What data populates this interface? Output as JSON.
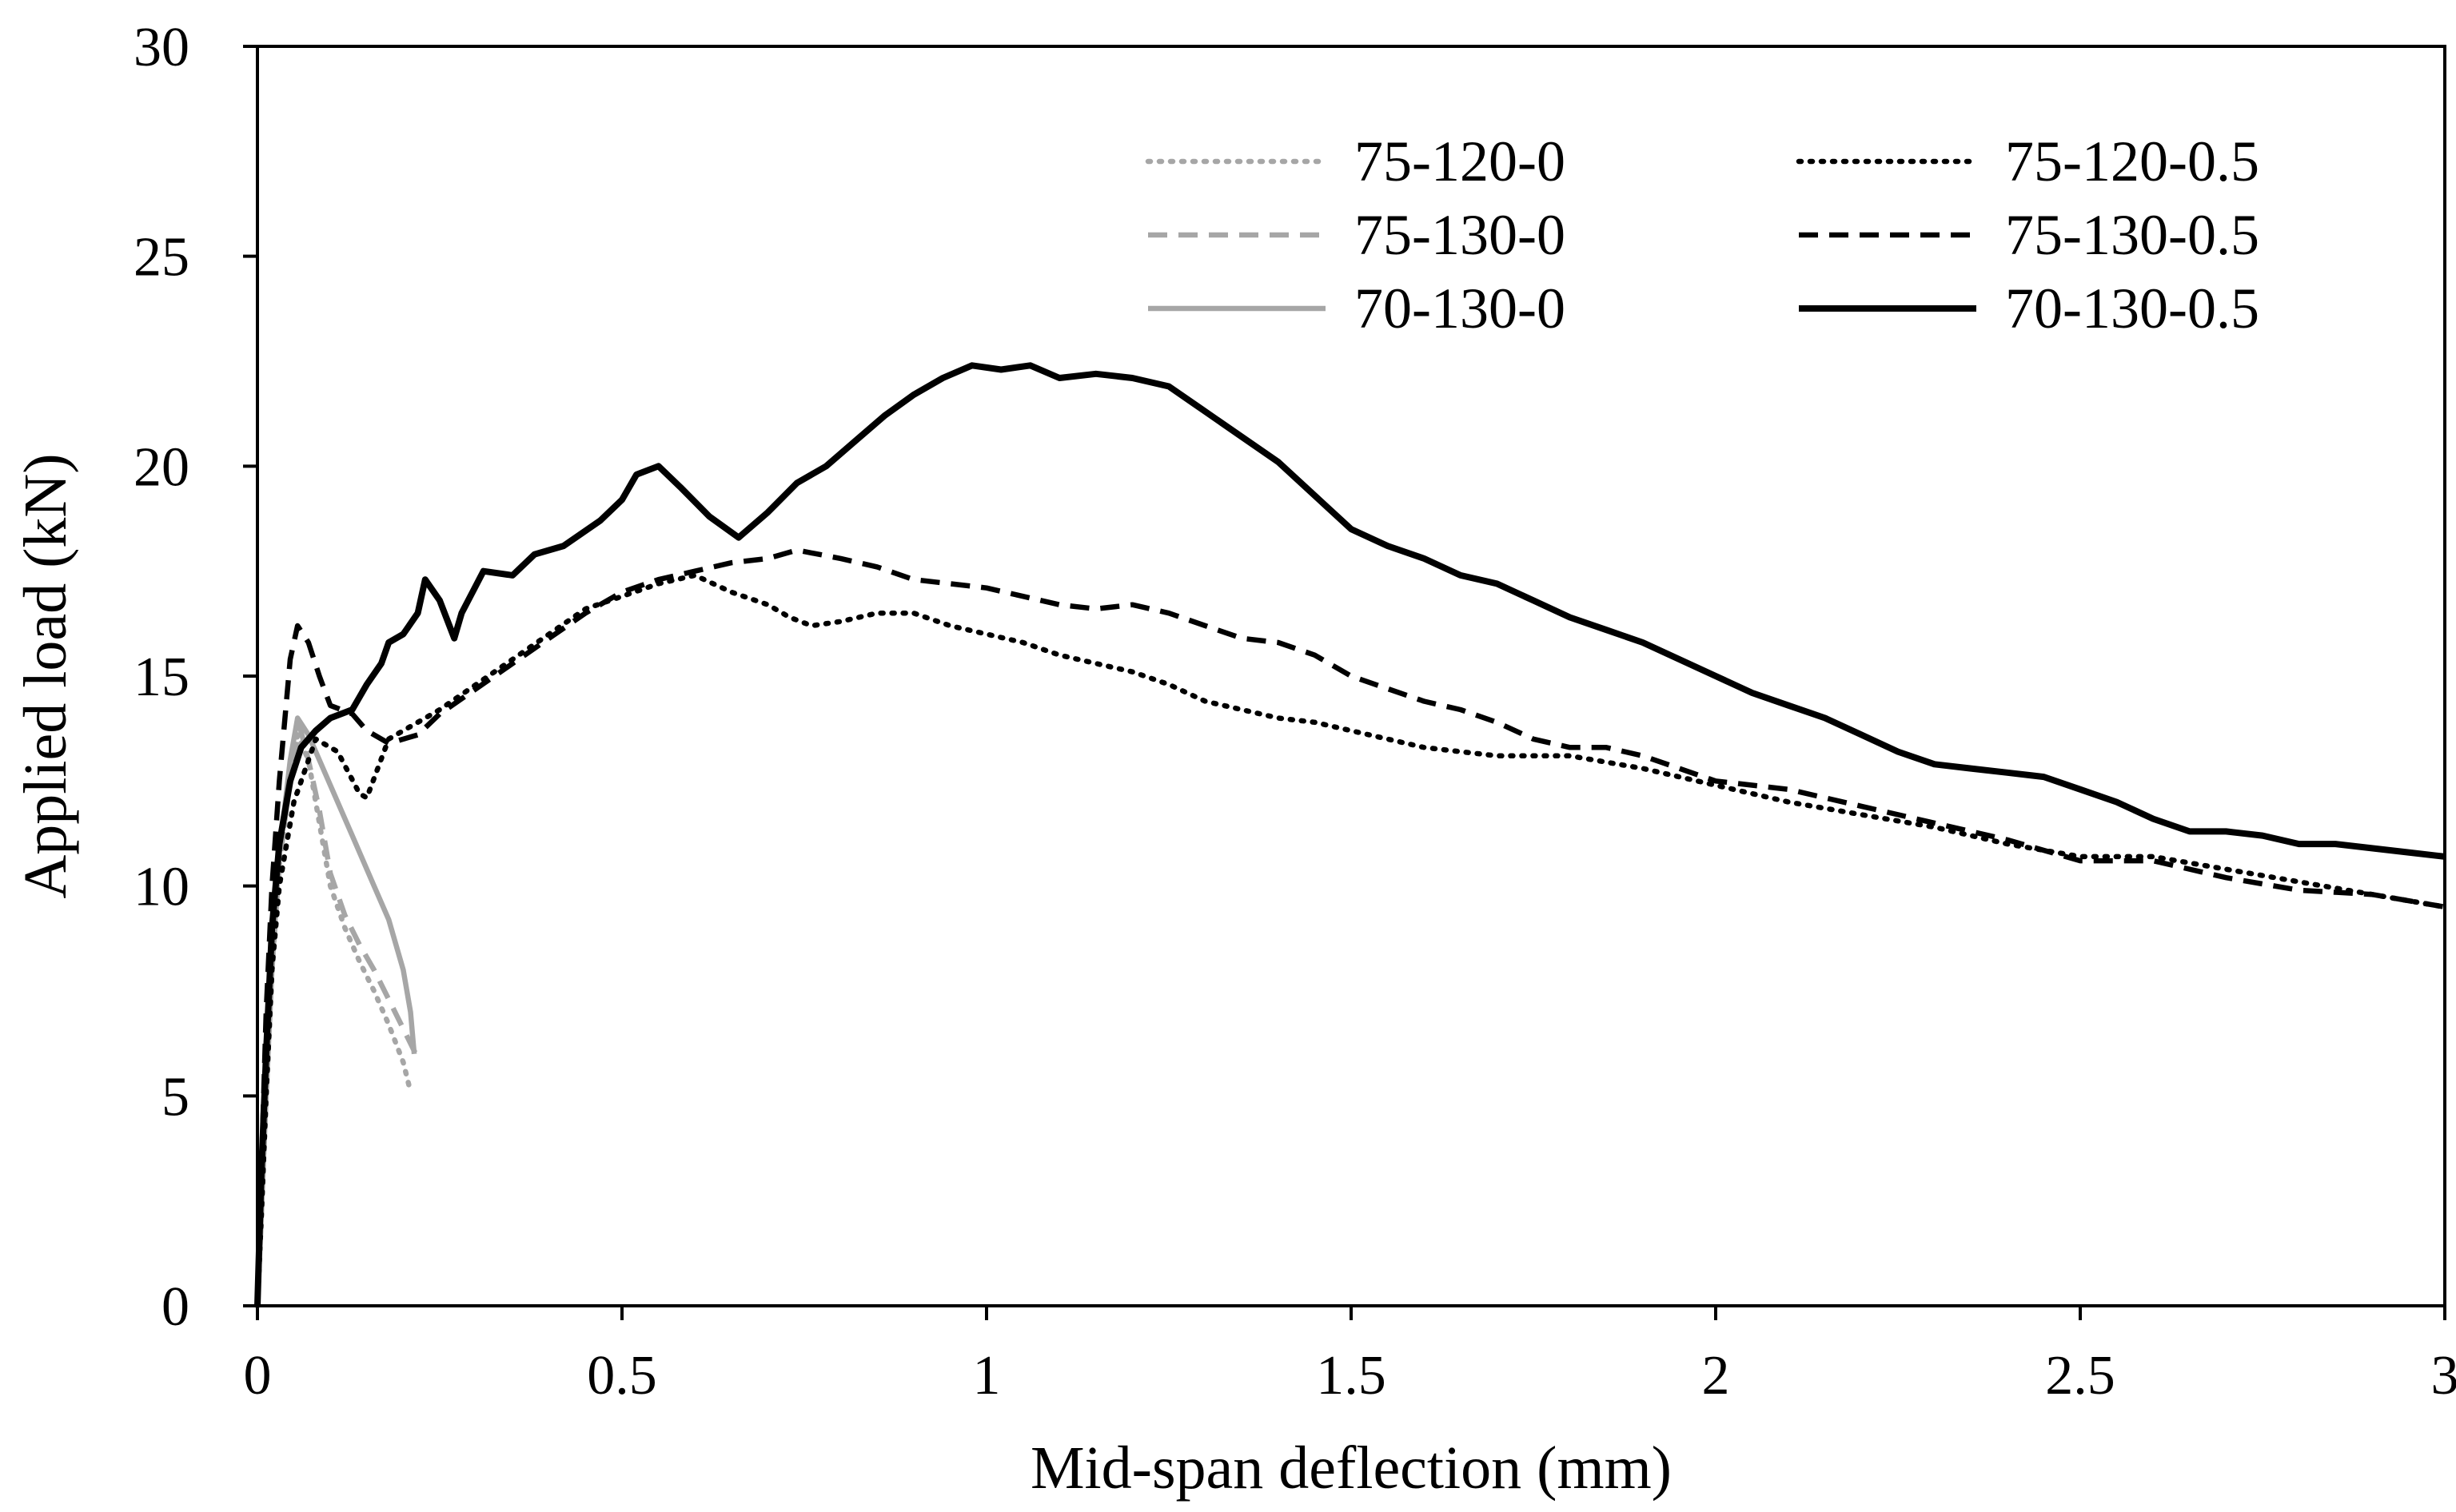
{
  "chart_data": {
    "type": "line",
    "title": "",
    "xlabel": "Mid-span deflection (mm)",
    "ylabel": "Applied load (kN)",
    "xlim": [
      0,
      3
    ],
    "ylim": [
      0,
      30
    ],
    "xticks": [
      0,
      0.5,
      1,
      1.5,
      2,
      2.5,
      3
    ],
    "yticks": [
      0,
      5,
      10,
      15,
      20,
      25,
      30
    ],
    "xtick_labels": [
      "0",
      "0.5",
      "1",
      "1.5",
      "2",
      "2.5",
      "3"
    ],
    "ytick_labels": [
      "0",
      "5",
      "10",
      "15",
      "20",
      "25",
      "30"
    ],
    "grid": false,
    "legend_position": "top-right",
    "series": [
      {
        "name": "75-120-0",
        "color": "#a6a6a6",
        "dash": "dotted",
        "weight": "normal",
        "points": [
          [
            0,
            0
          ],
          [
            0.005,
            2
          ],
          [
            0.012,
            5
          ],
          [
            0.02,
            8
          ],
          [
            0.03,
            10.5
          ],
          [
            0.045,
            12.5
          ],
          [
            0.055,
            13.6
          ],
          [
            0.07,
            13
          ],
          [
            0.085,
            11.5
          ],
          [
            0.1,
            10
          ],
          [
            0.12,
            9
          ],
          [
            0.14,
            8.2
          ],
          [
            0.16,
            7.5
          ],
          [
            0.18,
            6.7
          ],
          [
            0.2,
            5.8
          ],
          [
            0.21,
            5.1
          ]
        ]
      },
      {
        "name": "75-130-0",
        "color": "#a6a6a6",
        "dash": "dashed",
        "weight": "normal",
        "points": [
          [
            0,
            0
          ],
          [
            0.005,
            2
          ],
          [
            0.012,
            5
          ],
          [
            0.02,
            8
          ],
          [
            0.03,
            10.5
          ],
          [
            0.045,
            12.6
          ],
          [
            0.058,
            13.8
          ],
          [
            0.07,
            13
          ],
          [
            0.085,
            11.8
          ],
          [
            0.1,
            10.3
          ],
          [
            0.12,
            9.3
          ],
          [
            0.14,
            8.6
          ],
          [
            0.16,
            8
          ],
          [
            0.18,
            7.3
          ],
          [
            0.2,
            6.6
          ],
          [
            0.22,
            5.9
          ]
        ]
      },
      {
        "name": "70-130-0",
        "color": "#a6a6a6",
        "dash": "solid",
        "weight": "normal",
        "points": [
          [
            0,
            0
          ],
          [
            0.005,
            2
          ],
          [
            0.012,
            5
          ],
          [
            0.02,
            8
          ],
          [
            0.03,
            10.8
          ],
          [
            0.045,
            13
          ],
          [
            0.055,
            14
          ],
          [
            0.07,
            13.6
          ],
          [
            0.1,
            12.4
          ],
          [
            0.13,
            11.2
          ],
          [
            0.16,
            10
          ],
          [
            0.18,
            9.2
          ],
          [
            0.2,
            8
          ],
          [
            0.21,
            7
          ],
          [
            0.215,
            6
          ]
        ]
      },
      {
        "name": "75-120-0.5",
        "color": "#000000",
        "dash": "dotted",
        "weight": "normal",
        "points": [
          [
            0,
            0
          ],
          [
            0.005,
            2
          ],
          [
            0.012,
            5
          ],
          [
            0.02,
            8
          ],
          [
            0.03,
            10
          ],
          [
            0.05,
            12
          ],
          [
            0.08,
            13.5
          ],
          [
            0.11,
            13.2
          ],
          [
            0.14,
            12.2
          ],
          [
            0.15,
            12.1
          ],
          [
            0.18,
            13.5
          ],
          [
            0.25,
            14.2
          ],
          [
            0.3,
            14.8
          ],
          [
            0.35,
            15.4
          ],
          [
            0.4,
            16
          ],
          [
            0.45,
            16.6
          ],
          [
            0.5,
            16.9
          ],
          [
            0.55,
            17.2
          ],
          [
            0.6,
            17.4
          ],
          [
            0.65,
            17
          ],
          [
            0.7,
            16.7
          ],
          [
            0.73,
            16.4
          ],
          [
            0.76,
            16.2
          ],
          [
            0.8,
            16.3
          ],
          [
            0.85,
            16.5
          ],
          [
            0.9,
            16.5
          ],
          [
            0.95,
            16.2
          ],
          [
            1,
            16
          ],
          [
            1.05,
            15.8
          ],
          [
            1.1,
            15.5
          ],
          [
            1.15,
            15.3
          ],
          [
            1.2,
            15.1
          ],
          [
            1.25,
            14.8
          ],
          [
            1.3,
            14.4
          ],
          [
            1.35,
            14.2
          ],
          [
            1.4,
            14
          ],
          [
            1.45,
            13.9
          ],
          [
            1.5,
            13.7
          ],
          [
            1.55,
            13.5
          ],
          [
            1.6,
            13.3
          ],
          [
            1.7,
            13.1
          ],
          [
            1.8,
            13.1
          ],
          [
            1.9,
            12.8
          ],
          [
            2,
            12.4
          ],
          [
            2.1,
            12
          ],
          [
            2.2,
            11.7
          ],
          [
            2.3,
            11.4
          ],
          [
            2.4,
            11
          ],
          [
            2.5,
            10.7
          ],
          [
            2.6,
            10.7
          ],
          [
            2.7,
            10.4
          ],
          [
            2.8,
            10.1
          ],
          [
            2.9,
            9.8
          ],
          [
            3,
            9.5
          ]
        ]
      },
      {
        "name": "75-130-0.5",
        "color": "#000000",
        "dash": "dashed",
        "weight": "normal",
        "points": [
          [
            0,
            0
          ],
          [
            0.005,
            3
          ],
          [
            0.012,
            7
          ],
          [
            0.02,
            10
          ],
          [
            0.03,
            12.5
          ],
          [
            0.045,
            15.4
          ],
          [
            0.055,
            16.2
          ],
          [
            0.07,
            15.8
          ],
          [
            0.085,
            15
          ],
          [
            0.1,
            14.3
          ],
          [
            0.13,
            14.1
          ],
          [
            0.15,
            13.7
          ],
          [
            0.18,
            13.4
          ],
          [
            0.22,
            13.6
          ],
          [
            0.25,
            14.1
          ],
          [
            0.3,
            14.7
          ],
          [
            0.35,
            15.3
          ],
          [
            0.4,
            15.9
          ],
          [
            0.45,
            16.5
          ],
          [
            0.5,
            17
          ],
          [
            0.55,
            17.3
          ],
          [
            0.6,
            17.5
          ],
          [
            0.65,
            17.7
          ],
          [
            0.7,
            17.8
          ],
          [
            0.74,
            18
          ],
          [
            0.8,
            17.8
          ],
          [
            0.85,
            17.6
          ],
          [
            0.9,
            17.3
          ],
          [
            0.95,
            17.2
          ],
          [
            1,
            17.1
          ],
          [
            1.05,
            16.9
          ],
          [
            1.1,
            16.7
          ],
          [
            1.15,
            16.6
          ],
          [
            1.2,
            16.7
          ],
          [
            1.25,
            16.5
          ],
          [
            1.3,
            16.2
          ],
          [
            1.35,
            15.9
          ],
          [
            1.4,
            15.8
          ],
          [
            1.45,
            15.5
          ],
          [
            1.5,
            15
          ],
          [
            1.55,
            14.7
          ],
          [
            1.6,
            14.4
          ],
          [
            1.65,
            14.2
          ],
          [
            1.7,
            13.9
          ],
          [
            1.75,
            13.5
          ],
          [
            1.8,
            13.3
          ],
          [
            1.85,
            13.3
          ],
          [
            1.9,
            13.1
          ],
          [
            2,
            12.5
          ],
          [
            2.1,
            12.3
          ],
          [
            2.2,
            11.9
          ],
          [
            2.3,
            11.5
          ],
          [
            2.4,
            11.1
          ],
          [
            2.5,
            10.6
          ],
          [
            2.6,
            10.6
          ],
          [
            2.7,
            10.2
          ],
          [
            2.8,
            9.9
          ],
          [
            2.9,
            9.8
          ],
          [
            3,
            9.5
          ]
        ]
      },
      {
        "name": "70-130-0.5",
        "color": "#000000",
        "dash": "solid",
        "weight": "bold",
        "points": [
          [
            0,
            0
          ],
          [
            0.005,
            3
          ],
          [
            0.012,
            6
          ],
          [
            0.02,
            9
          ],
          [
            0.03,
            11
          ],
          [
            0.045,
            12.5
          ],
          [
            0.06,
            13.3
          ],
          [
            0.08,
            13.7
          ],
          [
            0.1,
            14
          ],
          [
            0.13,
            14.2
          ],
          [
            0.15,
            14.8
          ],
          [
            0.17,
            15.3
          ],
          [
            0.18,
            15.8
          ],
          [
            0.2,
            16
          ],
          [
            0.22,
            16.5
          ],
          [
            0.23,
            17.3
          ],
          [
            0.25,
            16.8
          ],
          [
            0.27,
            15.9
          ],
          [
            0.28,
            16.5
          ],
          [
            0.31,
            17.5
          ],
          [
            0.35,
            17.4
          ],
          [
            0.38,
            17.9
          ],
          [
            0.42,
            18.1
          ],
          [
            0.47,
            18.7
          ],
          [
            0.5,
            19.2
          ],
          [
            0.52,
            19.8
          ],
          [
            0.55,
            20
          ],
          [
            0.58,
            19.5
          ],
          [
            0.62,
            18.8
          ],
          [
            0.66,
            18.3
          ],
          [
            0.7,
            18.9
          ],
          [
            0.74,
            19.6
          ],
          [
            0.78,
            20
          ],
          [
            0.82,
            20.6
          ],
          [
            0.86,
            21.2
          ],
          [
            0.9,
            21.7
          ],
          [
            0.94,
            22.1
          ],
          [
            0.98,
            22.4
          ],
          [
            1.02,
            22.3
          ],
          [
            1.06,
            22.4
          ],
          [
            1.1,
            22.1
          ],
          [
            1.15,
            22.2
          ],
          [
            1.2,
            22.1
          ],
          [
            1.25,
            21.9
          ],
          [
            1.3,
            21.3
          ],
          [
            1.35,
            20.7
          ],
          [
            1.4,
            20.1
          ],
          [
            1.45,
            19.3
          ],
          [
            1.5,
            18.5
          ],
          [
            1.55,
            18.1
          ],
          [
            1.6,
            17.8
          ],
          [
            1.65,
            17.4
          ],
          [
            1.7,
            17.2
          ],
          [
            1.75,
            16.8
          ],
          [
            1.8,
            16.4
          ],
          [
            1.85,
            16.1
          ],
          [
            1.9,
            15.8
          ],
          [
            1.95,
            15.4
          ],
          [
            2,
            15
          ],
          [
            2.05,
            14.6
          ],
          [
            2.1,
            14.3
          ],
          [
            2.15,
            14
          ],
          [
            2.2,
            13.6
          ],
          [
            2.25,
            13.2
          ],
          [
            2.3,
            12.9
          ],
          [
            2.35,
            12.8
          ],
          [
            2.4,
            12.7
          ],
          [
            2.45,
            12.6
          ],
          [
            2.5,
            12.3
          ],
          [
            2.55,
            12
          ],
          [
            2.6,
            11.6
          ],
          [
            2.65,
            11.3
          ],
          [
            2.7,
            11.3
          ],
          [
            2.75,
            11.2
          ],
          [
            2.8,
            11
          ],
          [
            2.85,
            11
          ],
          [
            2.9,
            10.9
          ],
          [
            2.95,
            10.8
          ],
          [
            3,
            10.7
          ]
        ]
      }
    ]
  }
}
